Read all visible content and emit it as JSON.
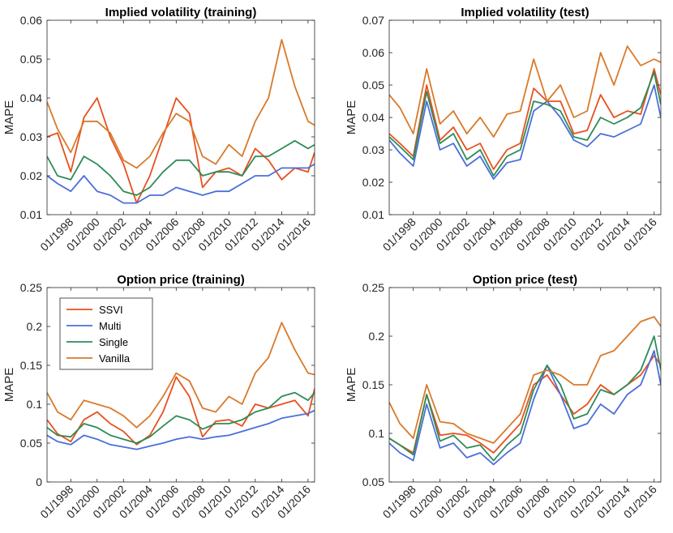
{
  "figure": {
    "legend": {
      "placement": "top-left of bottom-left panel",
      "entries": [
        {
          "name": "SSVI",
          "color": "#e8501f"
        },
        {
          "name": "Multi",
          "color": "#4b6fd9"
        },
        {
          "name": "Single",
          "color": "#2e8b57"
        },
        {
          "name": "Vanilla",
          "color": "#d97a2b"
        }
      ]
    }
  },
  "chart_data": [
    {
      "type": "line",
      "title": "Implied volatility (training)",
      "xlabel": "",
      "ylabel": "MAPE",
      "xlim": [
        1996.2,
        2016.5
      ],
      "ylim": [
        0.01,
        0.06
      ],
      "yticks": [
        0.01,
        0.02,
        0.03,
        0.04,
        0.05,
        0.06
      ],
      "ytick_labels": [
        "0.01",
        "0.02",
        "0.03",
        "0.04",
        "0.05",
        "0.06"
      ],
      "xticks": [
        1998,
        2000,
        2002,
        2004,
        2006,
        2008,
        2010,
        2012,
        2014,
        2016
      ],
      "xtick_labels": [
        "01/1998",
        "01/2000",
        "01/2002",
        "01/2004",
        "01/2006",
        "01/2008",
        "01/2010",
        "01/2012",
        "01/2014",
        "01/2016"
      ],
      "x": [
        1996.2,
        1997.0,
        1998.0,
        1999.0,
        2000.0,
        2001.0,
        2002.0,
        2003.0,
        2004.0,
        2005.0,
        2006.0,
        2007.0,
        2008.0,
        2009.0,
        2010.0,
        2011.0,
        2012.0,
        2013.0,
        2014.0,
        2015.0,
        2016.0,
        2016.5
      ],
      "series": [
        {
          "name": "SSVI",
          "values": [
            0.03,
            0.031,
            0.021,
            0.035,
            0.04,
            0.03,
            0.023,
            0.013,
            0.02,
            0.03,
            0.04,
            0.036,
            0.017,
            0.021,
            0.022,
            0.02,
            0.027,
            0.024,
            0.019,
            0.022,
            0.021,
            0.026
          ]
        },
        {
          "name": "Multi",
          "values": [
            0.02,
            0.018,
            0.016,
            0.02,
            0.016,
            0.015,
            0.013,
            0.013,
            0.015,
            0.015,
            0.017,
            0.016,
            0.015,
            0.016,
            0.016,
            0.018,
            0.02,
            0.02,
            0.022,
            0.022,
            0.022,
            0.023
          ]
        },
        {
          "name": "Single",
          "values": [
            0.025,
            0.02,
            0.019,
            0.025,
            0.023,
            0.02,
            0.016,
            0.015,
            0.017,
            0.021,
            0.024,
            0.024,
            0.02,
            0.021,
            0.021,
            0.02,
            0.025,
            0.025,
            0.027,
            0.029,
            0.027,
            0.028
          ]
        },
        {
          "name": "Vanilla",
          "values": [
            0.039,
            0.032,
            0.026,
            0.034,
            0.034,
            0.031,
            0.024,
            0.022,
            0.025,
            0.031,
            0.036,
            0.034,
            0.025,
            0.023,
            0.028,
            0.025,
            0.034,
            0.04,
            0.055,
            0.043,
            0.034,
            0.033
          ]
        }
      ]
    },
    {
      "type": "line",
      "title": "Implied volatility (test)",
      "xlabel": "",
      "ylabel": "MAPE",
      "xlim": [
        1996.2,
        2016.5
      ],
      "ylim": [
        0.01,
        0.07
      ],
      "yticks": [
        0.01,
        0.02,
        0.03,
        0.04,
        0.05,
        0.06,
        0.07
      ],
      "ytick_labels": [
        "0.01",
        "0.02",
        "0.03",
        "0.04",
        "0.05",
        "0.06",
        "0.07"
      ],
      "xticks": [
        1998,
        2000,
        2002,
        2004,
        2006,
        2008,
        2010,
        2012,
        2014,
        2016
      ],
      "xtick_labels": [
        "01/1998",
        "01/2000",
        "01/2002",
        "01/2004",
        "01/2006",
        "01/2008",
        "01/2010",
        "01/2012",
        "01/2014",
        "01/2016"
      ],
      "x": [
        1996.2,
        1997.0,
        1998.0,
        1999.0,
        2000.0,
        2001.0,
        2002.0,
        2003.0,
        2004.0,
        2005.0,
        2006.0,
        2007.0,
        2008.0,
        2009.0,
        2010.0,
        2011.0,
        2012.0,
        2013.0,
        2014.0,
        2015.0,
        2016.0,
        2016.5
      ],
      "series": [
        {
          "name": "SSVI",
          "values": [
            0.035,
            0.032,
            0.028,
            0.05,
            0.033,
            0.037,
            0.03,
            0.032,
            0.024,
            0.03,
            0.032,
            0.049,
            0.045,
            0.045,
            0.035,
            0.036,
            0.047,
            0.04,
            0.042,
            0.041,
            0.055,
            0.047
          ]
        },
        {
          "name": "Multi",
          "values": [
            0.033,
            0.029,
            0.025,
            0.045,
            0.03,
            0.032,
            0.025,
            0.028,
            0.021,
            0.026,
            0.027,
            0.042,
            0.045,
            0.04,
            0.033,
            0.031,
            0.035,
            0.034,
            0.036,
            0.038,
            0.05,
            0.04
          ]
        },
        {
          "name": "Single",
          "values": [
            0.034,
            0.031,
            0.027,
            0.048,
            0.032,
            0.035,
            0.027,
            0.03,
            0.022,
            0.028,
            0.03,
            0.045,
            0.044,
            0.042,
            0.034,
            0.033,
            0.04,
            0.038,
            0.04,
            0.043,
            0.054,
            0.044
          ]
        },
        {
          "name": "Vanilla",
          "values": [
            0.047,
            0.043,
            0.035,
            0.055,
            0.038,
            0.042,
            0.035,
            0.04,
            0.034,
            0.041,
            0.042,
            0.058,
            0.045,
            0.05,
            0.04,
            0.042,
            0.06,
            0.05,
            0.062,
            0.056,
            0.058,
            0.057
          ]
        }
      ]
    },
    {
      "type": "line",
      "title": "Option price (training)",
      "xlabel": "",
      "ylabel": "MAPE",
      "xlim": [
        1996.2,
        2016.5
      ],
      "ylim": [
        0,
        0.25
      ],
      "yticks": [
        0,
        0.05,
        0.1,
        0.15,
        0.2,
        0.25
      ],
      "ytick_labels": [
        "0",
        "0.05",
        "0.1",
        "0.15",
        "0.2",
        "0.25"
      ],
      "xticks": [
        1998,
        2000,
        2002,
        2004,
        2006,
        2008,
        2010,
        2012,
        2014,
        2016
      ],
      "xtick_labels": [
        "01/1998",
        "01/2000",
        "01/2002",
        "01/2004",
        "01/2006",
        "01/2008",
        "01/2010",
        "01/2012",
        "01/2014",
        "01/2016"
      ],
      "x": [
        1996.2,
        1997.0,
        1998.0,
        1999.0,
        2000.0,
        2001.0,
        2002.0,
        2003.0,
        2004.0,
        2005.0,
        2006.0,
        2007.0,
        2008.0,
        2009.0,
        2010.0,
        2011.0,
        2012.0,
        2013.0,
        2014.0,
        2015.0,
        2016.0,
        2016.5
      ],
      "series": [
        {
          "name": "SSVI",
          "values": [
            0.08,
            0.062,
            0.052,
            0.08,
            0.09,
            0.075,
            0.065,
            0.048,
            0.06,
            0.09,
            0.135,
            0.11,
            0.058,
            0.078,
            0.08,
            0.072,
            0.1,
            0.095,
            0.1,
            0.105,
            0.085,
            0.12
          ]
        },
        {
          "name": "Multi",
          "values": [
            0.06,
            0.052,
            0.048,
            0.06,
            0.055,
            0.048,
            0.045,
            0.042,
            0.046,
            0.05,
            0.055,
            0.058,
            0.055,
            0.058,
            0.06,
            0.065,
            0.07,
            0.075,
            0.082,
            0.085,
            0.088,
            0.092
          ]
        },
        {
          "name": "Single",
          "values": [
            0.07,
            0.06,
            0.058,
            0.075,
            0.07,
            0.06,
            0.055,
            0.05,
            0.058,
            0.072,
            0.085,
            0.08,
            0.068,
            0.075,
            0.075,
            0.08,
            0.09,
            0.095,
            0.11,
            0.115,
            0.105,
            0.115
          ]
        },
        {
          "name": "Vanilla",
          "values": [
            0.115,
            0.09,
            0.08,
            0.105,
            0.1,
            0.095,
            0.085,
            0.07,
            0.085,
            0.11,
            0.14,
            0.13,
            0.095,
            0.09,
            0.11,
            0.1,
            0.14,
            0.16,
            0.205,
            0.17,
            0.14,
            0.138
          ]
        }
      ]
    },
    {
      "type": "line",
      "title": "Option price (test)",
      "xlabel": "",
      "ylabel": "MAPE",
      "xlim": [
        1996.2,
        2016.5
      ],
      "ylim": [
        0.05,
        0.25
      ],
      "yticks": [
        0.05,
        0.1,
        0.15,
        0.2,
        0.25
      ],
      "ytick_labels": [
        "0.05",
        "0.1",
        "0.15",
        "0.2",
        "0.25"
      ],
      "xticks": [
        1998,
        2000,
        2002,
        2004,
        2006,
        2008,
        2010,
        2012,
        2014,
        2016
      ],
      "xtick_labels": [
        "01/1998",
        "01/2000",
        "01/2002",
        "01/2004",
        "01/2006",
        "01/2008",
        "01/2010",
        "01/2012",
        "01/2014",
        "01/2016"
      ],
      "x": [
        1996.2,
        1997.0,
        1998.0,
        1999.0,
        2000.0,
        2001.0,
        2002.0,
        2003.0,
        2004.0,
        2005.0,
        2006.0,
        2007.0,
        2008.0,
        2009.0,
        2010.0,
        2011.0,
        2012.0,
        2013.0,
        2014.0,
        2015.0,
        2016.0,
        2016.5
      ],
      "series": [
        {
          "name": "SSVI",
          "values": [
            0.095,
            0.088,
            0.08,
            0.14,
            0.098,
            0.1,
            0.098,
            0.09,
            0.08,
            0.095,
            0.11,
            0.15,
            0.16,
            0.14,
            0.12,
            0.13,
            0.15,
            0.14,
            0.15,
            0.16,
            0.18,
            0.17
          ]
        },
        {
          "name": "Multi",
          "values": [
            0.09,
            0.08,
            0.072,
            0.13,
            0.085,
            0.09,
            0.075,
            0.08,
            0.068,
            0.08,
            0.09,
            0.135,
            0.17,
            0.14,
            0.105,
            0.11,
            0.13,
            0.12,
            0.14,
            0.15,
            0.185,
            0.15
          ]
        },
        {
          "name": "Single",
          "values": [
            0.095,
            0.088,
            0.078,
            0.14,
            0.092,
            0.098,
            0.085,
            0.088,
            0.072,
            0.088,
            0.1,
            0.145,
            0.17,
            0.15,
            0.115,
            0.12,
            0.145,
            0.14,
            0.15,
            0.165,
            0.2,
            0.165
          ]
        },
        {
          "name": "Vanilla",
          "values": [
            0.132,
            0.11,
            0.095,
            0.15,
            0.112,
            0.11,
            0.1,
            0.095,
            0.09,
            0.105,
            0.12,
            0.16,
            0.165,
            0.16,
            0.15,
            0.15,
            0.18,
            0.185,
            0.2,
            0.215,
            0.22,
            0.21
          ]
        }
      ]
    }
  ]
}
